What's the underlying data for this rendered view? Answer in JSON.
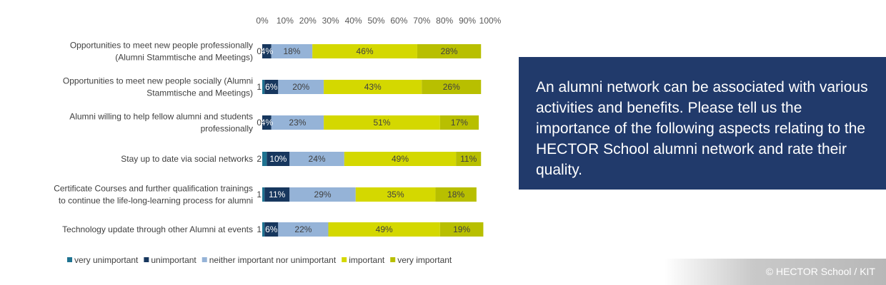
{
  "chart_data": {
    "type": "bar",
    "orientation": "horizontal",
    "stacked": true,
    "percent": true,
    "xlim": [
      0,
      100
    ],
    "xticks": [
      "0%",
      "10%",
      "20%",
      "30%",
      "40%",
      "50%",
      "60%",
      "70%",
      "80%",
      "90%",
      "100%"
    ],
    "legend_position": "bottom",
    "categories": [
      [
        "Opportunities to meet new people professionally",
        "(Alumni Stammtische and Meetings)"
      ],
      [
        "Opportunities to meet new people socially (Alumni",
        "Stammtische and Meetings)"
      ],
      [
        "Alumni willing to help fellow alumni and students",
        "professionally"
      ],
      [
        "Stay up to date via social networks"
      ],
      [
        "Certificate Courses and further qualification trainings",
        "to continue the life-long-learning process for alumni"
      ],
      [
        "Technology update through other Alumni at events"
      ]
    ],
    "series": [
      {
        "name": "very unimportant",
        "color": "#1f7391",
        "text_color": "#404040",
        "values": [
          0,
          1,
          0,
          2,
          1,
          1
        ],
        "labels": [
          "0%",
          "1%",
          "0%",
          "2%",
          "1%",
          "1%"
        ]
      },
      {
        "name": "unimportant",
        "color": "#17375e",
        "text_color": "#ffffff",
        "values": [
          4,
          6,
          4,
          10,
          11,
          6
        ],
        "labels": [
          "4%",
          "6%",
          "4%",
          "10%",
          "11%",
          "6%"
        ]
      },
      {
        "name": "neither important nor unimportant",
        "color": "#95b3d7",
        "text_color": "#404040",
        "values": [
          18,
          20,
          23,
          24,
          29,
          22
        ],
        "labels": [
          "18%",
          "20%",
          "23%",
          "24%",
          "29%",
          "22%"
        ]
      },
      {
        "name": "important",
        "color": "#d4d800",
        "text_color": "#404040",
        "values": [
          46,
          43,
          51,
          49,
          35,
          49
        ],
        "labels": [
          "46%",
          "43%",
          "51%",
          "49%",
          "35%",
          "49%"
        ]
      },
      {
        "name": "very important",
        "color": "#b8bf00",
        "text_color": "#404040",
        "values": [
          28,
          26,
          17,
          11,
          18,
          19
        ],
        "labels": [
          "28%",
          "26%",
          "17%",
          "11%",
          "18%",
          "19%"
        ]
      }
    ]
  },
  "info_box": {
    "text": "An alumni network can be associated with various activities and benefits. Please tell us the importance of the following aspects relating to the HECTOR School alumni network and rate their quality.",
    "background": "#213a6b"
  },
  "footer": {
    "copyright": "© HECTOR School / KIT"
  }
}
